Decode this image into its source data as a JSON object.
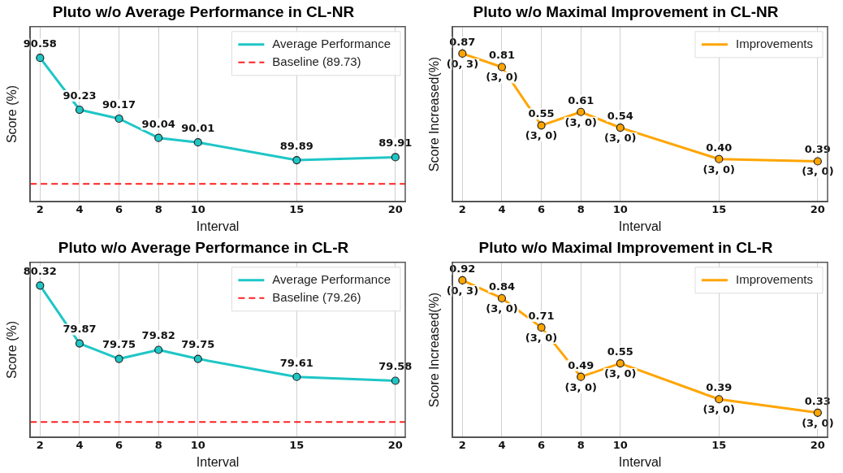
{
  "chart_data": [
    {
      "type": "line",
      "title": "Pluto w/o Average Performance in CL-NR",
      "xlabel": "Interval",
      "ylabel": "Score (%)",
      "x": [
        2,
        4,
        6,
        8,
        10,
        15,
        20
      ],
      "xlim": [
        1.5,
        20.5
      ],
      "xticks": [
        2,
        4,
        6,
        8,
        10,
        15,
        20
      ],
      "ylim": [
        89.61,
        90.79
      ],
      "tick_labels": "x",
      "grid": "x",
      "legend": "top right",
      "marker": "circle",
      "series": [
        {
          "name": "Average Performance",
          "color": "#1fc6c6",
          "values": [
            90.58,
            90.23,
            90.17,
            90.04,
            90.01,
            89.89,
            89.91
          ],
          "value_labels": [
            "90.58",
            "90.23",
            "90.17",
            "90.04",
            "90.01",
            "89.89",
            "89.91"
          ]
        }
      ],
      "ref_lines": [
        {
          "axis": "y",
          "value": 89.73,
          "label": "Baseline (89.73)",
          "color": "#ff2020",
          "line_style": "dashed"
        }
      ]
    },
    {
      "type": "line",
      "title": "Pluto w/o Maximal Improvement in CL-NR",
      "xlabel": "Interval",
      "ylabel": "Score Increased(%)",
      "x": [
        2,
        4,
        6,
        8,
        10,
        15,
        20
      ],
      "xlim": [
        1.5,
        20.5
      ],
      "xticks": [
        2,
        4,
        6,
        8,
        10,
        15,
        20
      ],
      "ylim": [
        0.21,
        0.99
      ],
      "tick_labels": "x",
      "grid": "x",
      "legend": "top right",
      "marker": "circle",
      "series": [
        {
          "name": "Improvements",
          "color": "#ffa500",
          "values": [
            0.87,
            0.81,
            0.55,
            0.61,
            0.54,
            0.4,
            0.39
          ],
          "value_labels": [
            "0.87",
            "0.81",
            "0.55",
            "0.61",
            "0.54",
            "0.40",
            "0.39"
          ]
        }
      ],
      "annotations": [
        {
          "text": "(0, 3)",
          "x": 2,
          "y": 0.87
        },
        {
          "text": "(3, 0)",
          "x": 4,
          "y": 0.81
        },
        {
          "text": "(3, 0)",
          "x": 6,
          "y": 0.55
        },
        {
          "text": "(3, 0)",
          "x": 8,
          "y": 0.61
        },
        {
          "text": "(3, 0)",
          "x": 10,
          "y": 0.54
        },
        {
          "text": "(3, 0)",
          "x": 15,
          "y": 0.4
        },
        {
          "text": "(3, 0)",
          "x": 20,
          "y": 0.39
        }
      ]
    },
    {
      "type": "line",
      "title": "Pluto w/o Average Performance in CL-R",
      "xlabel": "Interval",
      "ylabel": "Score (%)",
      "x": [
        2,
        4,
        6,
        8,
        10,
        15,
        20
      ],
      "xlim": [
        1.5,
        20.5
      ],
      "xticks": [
        2,
        4,
        6,
        8,
        10,
        15,
        20
      ],
      "ylim": [
        79.14,
        80.5
      ],
      "tick_labels": "x",
      "grid": "x",
      "legend": "top right",
      "marker": "circle",
      "series": [
        {
          "name": "Average Performance",
          "color": "#1fc6c6",
          "values": [
            80.32,
            79.87,
            79.75,
            79.82,
            79.75,
            79.61,
            79.58
          ],
          "value_labels": [
            "80.32",
            "79.87",
            "79.75",
            "79.82",
            "79.75",
            "79.61",
            "79.58"
          ]
        }
      ],
      "ref_lines": [
        {
          "axis": "y",
          "value": 79.26,
          "label": "Baseline (79.26)",
          "color": "#ff2020",
          "line_style": "dashed"
        }
      ]
    },
    {
      "type": "line",
      "title": "Pluto w/o Maximal Improvement in CL-R",
      "xlabel": "Interval",
      "ylabel": "Score Increased(%)",
      "x": [
        2,
        4,
        6,
        8,
        10,
        15,
        20
      ],
      "xlim": [
        1.5,
        20.5
      ],
      "xticks": [
        2,
        4,
        6,
        8,
        10,
        15,
        20
      ],
      "ylim": [
        0.22,
        1.0
      ],
      "tick_labels": "x",
      "grid": "x",
      "legend": "top right",
      "marker": "circle",
      "series": [
        {
          "name": "Improvements",
          "color": "#ffa500",
          "values": [
            0.92,
            0.84,
            0.71,
            0.49,
            0.55,
            0.39,
            0.33
          ],
          "value_labels": [
            "0.92",
            "0.84",
            "0.71",
            "0.49",
            "0.55",
            "0.39",
            "0.33"
          ]
        }
      ],
      "annotations": [
        {
          "text": "(0, 3)",
          "x": 2,
          "y": 0.92
        },
        {
          "text": "(3, 0)",
          "x": 4,
          "y": 0.84
        },
        {
          "text": "(3, 0)",
          "x": 6,
          "y": 0.71
        },
        {
          "text": "(3, 0)",
          "x": 8,
          "y": 0.49
        },
        {
          "text": "(3, 0)",
          "x": 10,
          "y": 0.55
        },
        {
          "text": "(3, 0)",
          "x": 15,
          "y": 0.39
        },
        {
          "text": "(3, 0)",
          "x": 20,
          "y": 0.33
        }
      ]
    }
  ]
}
